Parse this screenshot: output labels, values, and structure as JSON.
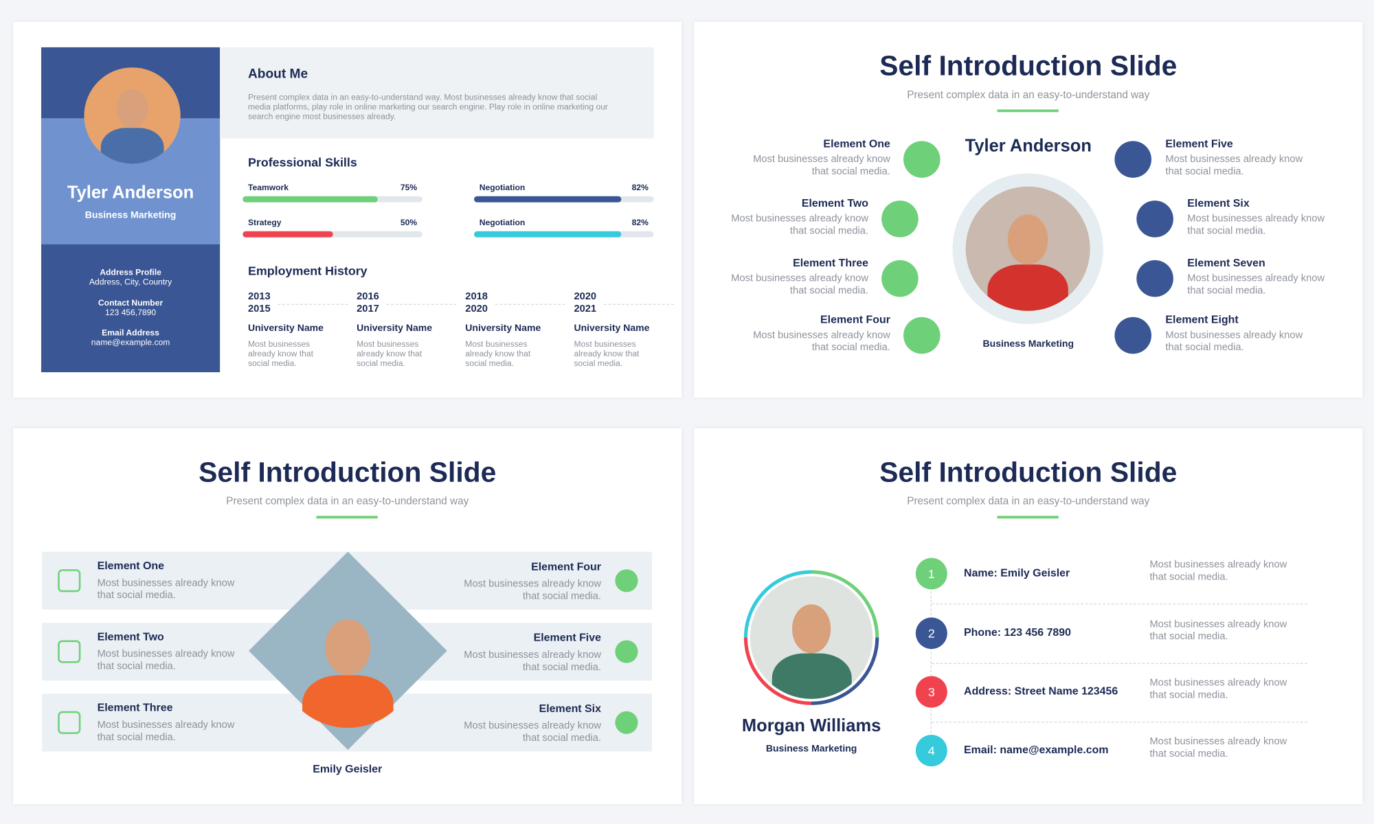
{
  "slide1": {
    "profile": {
      "name": "Tyler Anderson",
      "role": "Business Marketing",
      "contacts": [
        {
          "label": "Address Profile",
          "value": "Address, City, Country"
        },
        {
          "label": "Contact Number",
          "value": "123 456,7890"
        },
        {
          "label": "Email Address",
          "value": "name@example.com"
        }
      ]
    },
    "about": {
      "title": "About Me",
      "text": "Present complex data in an easy-to-understand way. Most businesses already know that social media platforms, play role in online marketing our search engine. Play role in online marketing our search engine most businesses already."
    },
    "skills": {
      "title": "Professional Skills",
      "items": [
        {
          "name": "Teamwork",
          "value": 75,
          "label": "75%",
          "color": "#6fd07a"
        },
        {
          "name": "Negotiation",
          "value": 82,
          "label": "82%",
          "color": "#3a5694"
        },
        {
          "name": "Strategy",
          "value": 50,
          "label": "50%",
          "color": "#f0434f"
        },
        {
          "name": "Negotiation",
          "value": 82,
          "label": "82%",
          "color": "#35cbdc"
        }
      ]
    },
    "employment": {
      "title": "Employment History",
      "items": [
        {
          "start": "2013",
          "end": "2015",
          "title": "University Name",
          "text": "Most businesses already know that social media."
        },
        {
          "start": "2016",
          "end": "2017",
          "title": "University Name",
          "text": "Most businesses already know that social media."
        },
        {
          "start": "2018",
          "end": "2020",
          "title": "University Name",
          "text": "Most businesses already know that social media."
        },
        {
          "start": "2020",
          "end": "2021",
          "title": "University Name",
          "text": "Most businesses already know that social media."
        }
      ]
    }
  },
  "slide2": {
    "title": "Self Introduction Slide",
    "subtitle": "Present complex data in an easy-to-understand way",
    "name": "Tyler Anderson",
    "role": "Business Marketing",
    "left": [
      {
        "title": "Element One",
        "text": "Most businesses already know that social media."
      },
      {
        "title": "Element Two",
        "text": "Most businesses already know that social media."
      },
      {
        "title": "Element Three",
        "text": "Most businesses already know that social media."
      },
      {
        "title": "Element Four",
        "text": "Most businesses already know that social media."
      }
    ],
    "right": [
      {
        "title": "Element Five",
        "text": "Most businesses already know that social media."
      },
      {
        "title": "Element Six",
        "text": "Most businesses already know that social media."
      },
      {
        "title": "Element Seven",
        "text": "Most businesses already know that social media."
      },
      {
        "title": "Element Eight",
        "text": "Most businesses already know that social media."
      }
    ]
  },
  "slide3": {
    "title": "Self Introduction Slide",
    "subtitle": "Present complex data in an easy-to-understand way",
    "name": "Emily Geisler",
    "left": [
      {
        "title": "Element One",
        "text": "Most businesses already know that social media."
      },
      {
        "title": "Element Two",
        "text": "Most businesses already know that social media."
      },
      {
        "title": "Element Three",
        "text": "Most businesses already know that social media."
      }
    ],
    "right": [
      {
        "title": "Element Four",
        "text": "Most businesses already know that social media."
      },
      {
        "title": "Element Five",
        "text": "Most businesses already know that social media."
      },
      {
        "title": "Element Six",
        "text": "Most businesses already know that social media."
      }
    ]
  },
  "slide4": {
    "title": "Self Introduction Slide",
    "subtitle": "Present complex data in an easy-to-understand way",
    "name": "Morgan Williams",
    "role": "Business Marketing",
    "items": [
      {
        "number": "1",
        "label": "Name: Emily Geisler",
        "text": "Most businesses already know that social media.",
        "color": "#6fd07a"
      },
      {
        "number": "2",
        "label": "Phone: 123 456 7890",
        "text": "Most businesses already know that social media.",
        "color": "#3a5694"
      },
      {
        "number": "3",
        "label": "Address: Street Name 123456",
        "text": "Most businesses already know that social media.",
        "color": "#f0434f"
      },
      {
        "number": "4",
        "label": "Email: name@example.com",
        "text": "Most businesses already know that social media.",
        "color": "#35cbdc"
      }
    ]
  }
}
